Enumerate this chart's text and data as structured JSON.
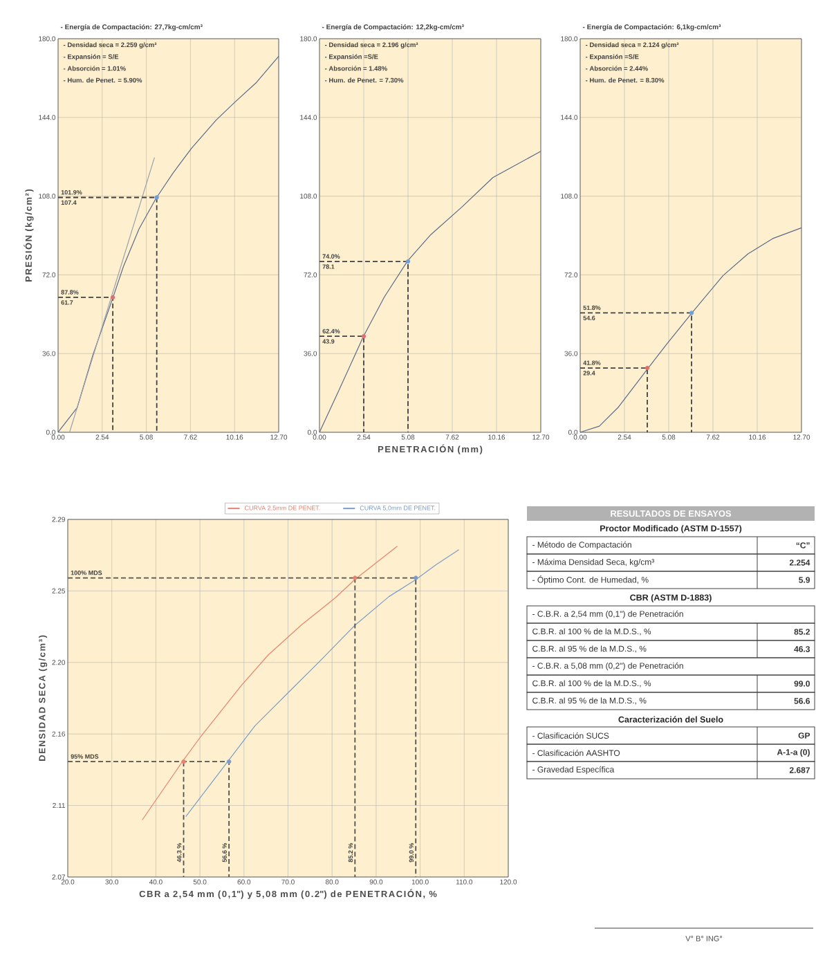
{
  "chart_data": [
    {
      "type": "line",
      "title": "- Energía de Compactación: 27,7kg-cm/cm³",
      "ylabel": "PRESIÓN (kg/cm²)",
      "xlim": [
        0,
        12.7
      ],
      "ylim": [
        0,
        180
      ],
      "xticks": [
        {
          "value": 0,
          "label": "0.00"
        },
        {
          "value": 2.54,
          "label": "2.54"
        },
        {
          "value": 5.08,
          "label": "5.08"
        },
        {
          "value": 7.62,
          "label": "7.62"
        },
        {
          "value": 10.16,
          "label": "10.16"
        },
        {
          "value": 12.7,
          "label": "12.70"
        }
      ],
      "yticks": [
        {
          "value": 0,
          "label": "0.0"
        },
        {
          "value": 36,
          "label": "36.0"
        },
        {
          "value": 72,
          "label": "72.0"
        },
        {
          "value": 108,
          "label": "108.0"
        },
        {
          "value": 144,
          "label": "144.0"
        },
        {
          "value": 180,
          "label": "180.0"
        }
      ],
      "grid": true,
      "series": [
        {
          "type": "line",
          "color": "#5a6a8a",
          "x": [
            0,
            1.1,
            2.0,
            3.15,
            3.77,
            4.66,
            5.64,
            6.62,
            7.69,
            9.1,
            10.18,
            11.42,
            12.7
          ],
          "values": [
            0,
            11.3,
            35.3,
            61.4,
            76,
            93,
            107,
            118.6,
            130,
            142.8,
            151,
            160,
            172
          ]
        },
        {
          "type": "line",
          "color": "#9aa0aa",
          "x": [
            0.66,
            5.55
          ],
          "values": [
            0,
            125.7
          ]
        },
        {
          "type": "line",
          "line_style": "dashed",
          "color": "#404040",
          "x": [
            0,
            3.15,
            3.15
          ],
          "values": [
            61.7,
            61.7,
            0
          ]
        },
        {
          "type": "line",
          "line_style": "dashed",
          "color": "#404040",
          "x": [
            0,
            5.68,
            5.68
          ],
          "values": [
            107.4,
            107.4,
            0
          ]
        },
        {
          "type": "scatter",
          "marker": "circle",
          "x": [
            3.15,
            5.68
          ],
          "values": [
            61.7,
            107.4
          ],
          "colors": [
            "#e07070",
            "#70a0d8"
          ]
        }
      ],
      "annotations": [
        "- Densidad seca = 2.259 g/cm³",
        "- Expansión = S/E",
        "- Absorción = 1.01%",
        "- Hum. de Penet. = 5.90%",
        {
          "text": "87.8%",
          "x": 0,
          "y": 61.7
        },
        {
          "text": "61.7",
          "x": 0,
          "y": 61.7
        },
        {
          "text": "101.9%",
          "x": 0,
          "y": 107.4
        },
        {
          "text": "107.4",
          "x": 0,
          "y": 107.4
        }
      ]
    },
    {
      "type": "line",
      "title": "- Energía de Compactación: 12,2kg-cm/cm³",
      "xlabel": "PENETRACIÓN (mm)",
      "xlim": [
        0,
        12.7
      ],
      "ylim": [
        0,
        180
      ],
      "xticks": [
        {
          "value": 0,
          "label": "0.00"
        },
        {
          "value": 2.54,
          "label": "2.54"
        },
        {
          "value": 5.08,
          "label": "5.08"
        },
        {
          "value": 7.62,
          "label": "7.62"
        },
        {
          "value": 10.16,
          "label": "10.16"
        },
        {
          "value": 12.7,
          "label": "12.70"
        }
      ],
      "yticks": [
        {
          "value": 0,
          "label": "0.0"
        },
        {
          "value": 36,
          "label": "36.0"
        },
        {
          "value": 72,
          "label": "72.0"
        },
        {
          "value": 108,
          "label": "108.0"
        },
        {
          "value": 144,
          "label": "144.0"
        },
        {
          "value": 180,
          "label": "180.0"
        }
      ],
      "grid": true,
      "series": [
        {
          "type": "line",
          "color": "#5a6a8a",
          "x": [
            0,
            1.07,
            2.52,
            3.73,
            5.06,
            6.39,
            8.17,
            9.95,
            12.7
          ],
          "values": [
            0,
            18.4,
            43.8,
            62,
            78.4,
            90.4,
            103,
            116.5,
            128.5
          ]
        },
        {
          "type": "line",
          "line_style": "dashed",
          "color": "#404040",
          "x": [
            0,
            2.54,
            2.54
          ],
          "values": [
            43.9,
            43.9,
            0
          ]
        },
        {
          "type": "line",
          "line_style": "dashed",
          "color": "#404040",
          "x": [
            0,
            5.08,
            5.08
          ],
          "values": [
            78.1,
            78.1,
            0
          ]
        },
        {
          "type": "scatter",
          "marker": "circle",
          "x": [
            2.54,
            5.08
          ],
          "values": [
            43.9,
            78.1
          ],
          "colors": [
            "#e07070",
            "#70a0d8"
          ]
        }
      ],
      "annotations": [
        "- Densidad seca = 2.196 g/cm³",
        "- Expansión =S/E",
        "- Absorción = 1.48%",
        "- Hum. de Penet. = 7.30%",
        {
          "text": "62.4%",
          "x": 0,
          "y": 43.9
        },
        {
          "text": "43.9",
          "x": 0,
          "y": 43.9
        },
        {
          "text": "74.0%",
          "x": 0,
          "y": 78.1
        },
        {
          "text": "78.1",
          "x": 0,
          "y": 78.1
        }
      ]
    },
    {
      "type": "line",
      "title": "- Energía de Compactación: 6,1kg-cm/cm³",
      "xlim": [
        0,
        12.7
      ],
      "ylim": [
        0,
        180
      ],
      "xticks": [
        {
          "value": 0,
          "label": "0.00"
        },
        {
          "value": 2.54,
          "label": "2.54"
        },
        {
          "value": 5.08,
          "label": "5.08"
        },
        {
          "value": 7.62,
          "label": "7.62"
        },
        {
          "value": 10.16,
          "label": "10.16"
        },
        {
          "value": 12.7,
          "label": "12.70"
        }
      ],
      "yticks": [
        {
          "value": 0,
          "label": "0.0"
        },
        {
          "value": 36,
          "label": "36.0"
        },
        {
          "value": 72,
          "label": "72.0"
        },
        {
          "value": 108,
          "label": "108.0"
        },
        {
          "value": 144,
          "label": "144.0"
        },
        {
          "value": 180,
          "label": "180.0"
        }
      ],
      "grid": true,
      "series": [
        {
          "type": "line",
          "color": "#5a6a8a",
          "x": [
            0,
            1.1,
            2.17,
            3.85,
            5.01,
            6.43,
            8.2,
            9.63,
            11.05,
            12.7
          ],
          "values": [
            0,
            2.8,
            11.3,
            28.8,
            40.8,
            54.8,
            71.7,
            81.6,
            88.6,
            93.5
          ]
        },
        {
          "type": "line",
          "line_style": "dashed",
          "color": "#404040",
          "x": [
            0,
            3.85,
            3.85
          ],
          "values": [
            29.4,
            29.4,
            0
          ]
        },
        {
          "type": "line",
          "line_style": "dashed",
          "color": "#404040",
          "x": [
            0,
            6.39,
            6.39
          ],
          "values": [
            54.6,
            54.6,
            0
          ]
        },
        {
          "type": "scatter",
          "marker": "circle",
          "x": [
            3.85,
            6.39
          ],
          "values": [
            29.4,
            54.6
          ],
          "colors": [
            "#e07070",
            "#70a0d8"
          ]
        }
      ],
      "annotations": [
        "- Densidad seca = 2.124 g/cm³",
        "- Expansión =S/E",
        "- Absorción = 2.44%",
        "- Hum. de Penet. = 8.30%",
        {
          "text": "41.8%",
          "x": 0,
          "y": 29.4
        },
        {
          "text": "29.4",
          "x": 0,
          "y": 29.4
        },
        {
          "text": "51.8%",
          "x": 0,
          "y": 54.6
        },
        {
          "text": "54.6",
          "x": 0,
          "y": 54.6
        }
      ]
    },
    {
      "type": "line",
      "xlabel": "CBR a 2,54 mm (0,1\") y 5,08 mm (0.2\") de PENETRACIÓN, %",
      "ylabel": "DENSIDAD SECA (g/cm³)",
      "xlim": [
        20,
        120
      ],
      "ylim": [
        2.07,
        2.29
      ],
      "xticks": [
        {
          "value": 20,
          "label": "20.0"
        },
        {
          "value": 30,
          "label": "30.0"
        },
        {
          "value": 40,
          "label": "40.0"
        },
        {
          "value": 50,
          "label": "50.0"
        },
        {
          "value": 60,
          "label": "60.0"
        },
        {
          "value": 70,
          "label": "70.0"
        },
        {
          "value": 80,
          "label": "80.0"
        },
        {
          "value": 90,
          "label": "90.0"
        },
        {
          "value": 100,
          "label": "100.0"
        },
        {
          "value": 110,
          "label": "110.0"
        },
        {
          "value": 120,
          "label": "120.0"
        }
      ],
      "yticks": [
        {
          "value": 2.07,
          "label": "2.07"
        },
        {
          "value": 2.114,
          "label": "2.11"
        },
        {
          "value": 2.158,
          "label": "2.16"
        },
        {
          "value": 2.202,
          "label": "2.20"
        },
        {
          "value": 2.246,
          "label": "2.25"
        },
        {
          "value": 2.29,
          "label": "2.29"
        }
      ],
      "grid": true,
      "legend": "top",
      "series": [
        {
          "type": "line",
          "name": "CURVA 2,5mm DE PENET.",
          "color": "#e8826e",
          "x": [
            36.9,
            46.1,
            50.3,
            59.4,
            65.5,
            73.1,
            80.7,
            85.2,
            94.8
          ],
          "values": [
            2.1051,
            2.1413,
            2.1568,
            2.1878,
            2.2066,
            2.2252,
            2.2417,
            2.2531,
            2.2735
          ]
        },
        {
          "type": "line",
          "name": "CURVA 5,0mm DE PENET.",
          "color": "#7b9cc9",
          "x": [
            46.8,
            56.4,
            62.5,
            70.1,
            77.0,
            85.2,
            92.9,
            98.9,
            103.6,
            108.8
          ],
          "values": [
            2.1072,
            2.1413,
            2.163,
            2.1836,
            2.2022,
            2.2249,
            2.2425,
            2.2528,
            2.2621,
            2.2714
          ]
        },
        {
          "type": "line",
          "line_style": "dashed",
          "color": "#505050",
          "x": [
            20,
            99.0,
            99.0
          ],
          "values": [
            2.254,
            2.254,
            2.07
          ]
        },
        {
          "type": "line",
          "line_style": "dashed",
          "color": "#505050",
          "x": [
            85.2,
            85.2
          ],
          "values": [
            2.254,
            2.07
          ]
        },
        {
          "type": "line",
          "line_style": "dashed",
          "color": "#505050",
          "x": [
            20,
            56.6,
            56.6
          ],
          "values": [
            2.141,
            2.141,
            2.07
          ]
        },
        {
          "type": "line",
          "line_style": "dashed",
          "color": "#505050",
          "x": [
            46.3,
            46.3
          ],
          "values": [
            2.141,
            2.07
          ]
        },
        {
          "type": "scatter",
          "marker": "circle",
          "x": [
            46.3,
            85.2,
            56.6,
            99.0
          ],
          "values": [
            2.141,
            2.254,
            2.141,
            2.254
          ],
          "colors": [
            "#e8826e",
            "#e8826e",
            "#7b9cc9",
            "#7b9cc9"
          ]
        }
      ],
      "annotations": [
        {
          "text": "100% MDS",
          "x": 20,
          "y": 2.254
        },
        {
          "text": "95% MDS",
          "x": 20,
          "y": 2.141
        },
        {
          "text": "46.3 %",
          "x": 46.3,
          "y": 2.085
        },
        {
          "text": "56.6 %",
          "x": 56.6,
          "y": 2.085
        },
        {
          "text": "85.2 %",
          "x": 85.2,
          "y": 2.085
        },
        {
          "text": "99.0 %",
          "x": 99.0,
          "y": 2.085
        }
      ]
    },
    {
      "type": "other",
      "title": "RESULTADOS DE ENSAYOS",
      "subtitle": "Proctor Modificado (ASTM D-1557)",
      "categories": [
        "- Método de Compactación",
        "- Máxima Densidad Seca, kg/cm³",
        "- Óptimo Cont. de Humedad, %"
      ],
      "value_labels": [
        "“C”",
        "2.254",
        "5.9"
      ]
    },
    {
      "type": "other",
      "title": "CBR (ASTM D-1883)",
      "categories": [
        "- C.B.R. a 2,54 mm (0,1\") de Penetración",
        "C.B.R. al 100 % de la M.D.S., %",
        "C.B.R. al 95 % de la M.D.S., %",
        "- C.B.R. a 5,08 mm (0,2\") de Penetración",
        "C.B.R. al 100 % de la M.D.S., %",
        "C.B.R. al 95 % de la M.D.S., %"
      ],
      "value_labels": [
        null,
        "85.2",
        "46.3",
        null,
        "99.0",
        "56.6"
      ]
    },
    {
      "type": "other",
      "title": "Caracterización del Suelo",
      "categories": [
        "- Clasificación SUCS",
        "- Clasificación AASHTO",
        "- Gravedad Específica"
      ],
      "value_labels": [
        "GP",
        "A-1-a (0)",
        "2.687"
      ],
      "annotations": [
        "V° B° ING°"
      ]
    }
  ]
}
